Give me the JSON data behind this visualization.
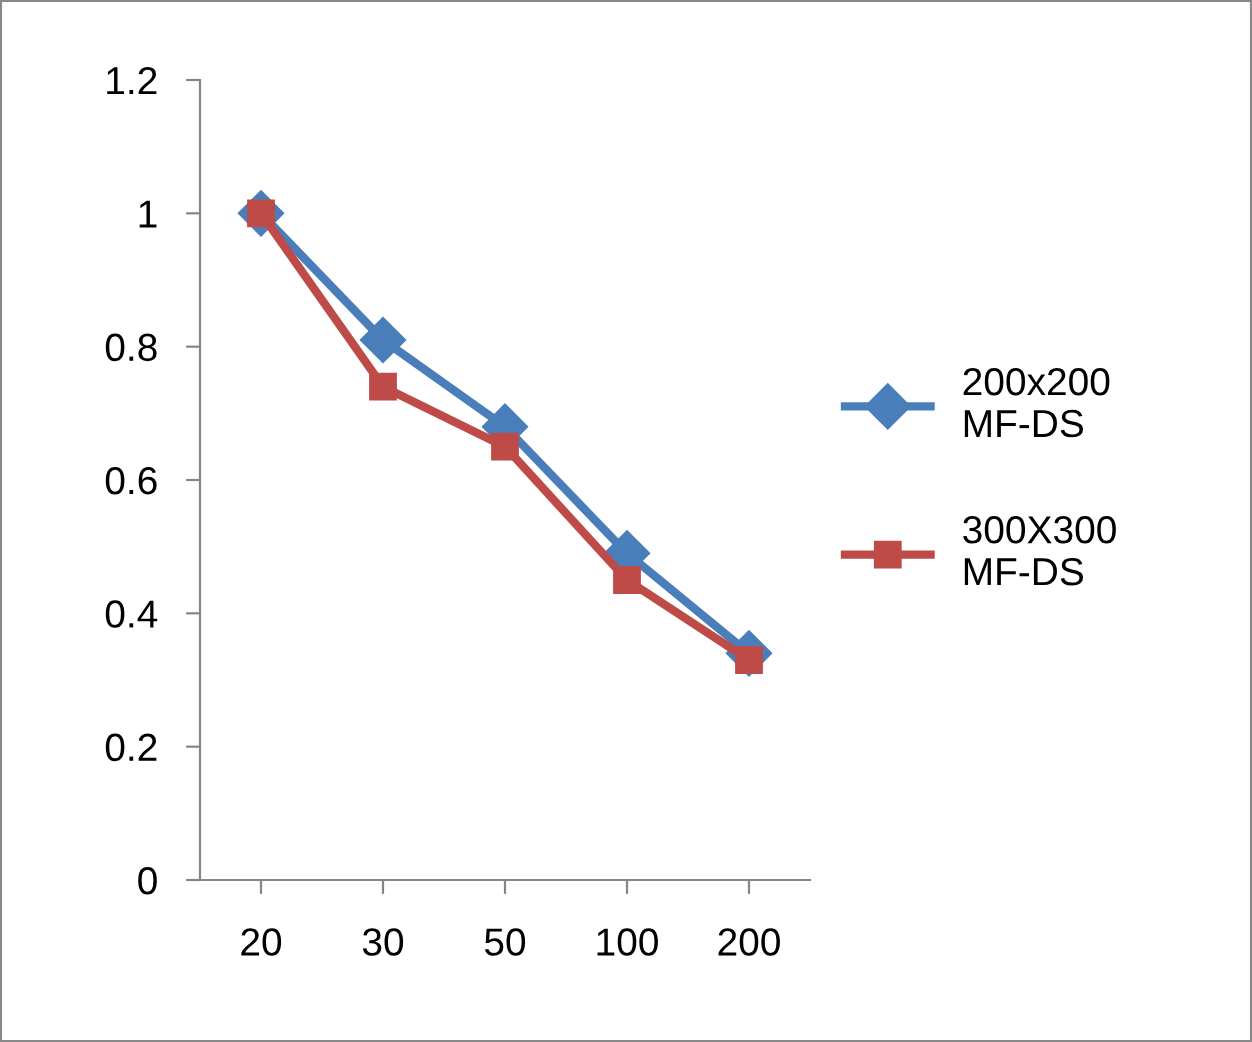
{
  "chart_data": {
    "type": "line",
    "categories": [
      "20",
      "30",
      "50",
      "100",
      "200"
    ],
    "series": [
      {
        "name": "200x200 MF-DS",
        "color": "#4a7ebb",
        "values": [
          1,
          0.81,
          0.68,
          0.49,
          0.34
        ],
        "marker": "diamond"
      },
      {
        "name": "300X300 MF-DS",
        "color": "#be4b48",
        "values": [
          1,
          0.74,
          0.65,
          0.45,
          0.33
        ],
        "marker": "square"
      }
    ],
    "ylim": [
      0,
      1.2
    ],
    "yticks": [
      0,
      0.2,
      0.4,
      0.6,
      0.8,
      1,
      1.2
    ],
    "grid": false,
    "legend": "right",
    "line_style": "solid"
  }
}
